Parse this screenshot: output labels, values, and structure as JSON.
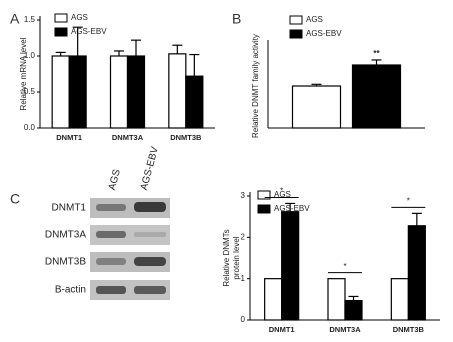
{
  "panel_labels": [
    "A",
    "B",
    "C"
  ],
  "blot": {
    "columns": [
      "AGS",
      "AGS-EBV"
    ],
    "rows": [
      "DNMT1",
      "DNMT3A",
      "DNMT3B",
      "B-actin"
    ]
  },
  "chart_data": [
    {
      "type": "bar",
      "ylabel": "Relative mRNA level",
      "categories": [
        "DNMT1",
        "DNMT3A",
        "DNMT3B"
      ],
      "series": [
        {
          "name": "AGS",
          "color": "#ffffff",
          "values": [
            1.0,
            1.0,
            1.03
          ],
          "errors": [
            0.05,
            0.07,
            0.12
          ]
        },
        {
          "name": "AGS-EBV",
          "color": "#000000",
          "values": [
            1.0,
            1.0,
            0.72
          ],
          "errors": [
            0.4,
            0.22,
            0.3
          ]
        }
      ],
      "ylim": [
        0,
        1.5
      ],
      "yticks": [
        {
          "value": 0,
          "label": "0.0"
        },
        {
          "value": 0.5,
          "label": "0.5"
        },
        {
          "value": 1,
          "label": "1.0"
        },
        {
          "value": 1.5,
          "label": "1.5"
        }
      ]
    },
    {
      "type": "bar",
      "ylabel": "Relative DNMT family activity",
      "series": [
        {
          "name": "AGS",
          "color": "#ffffff",
          "values": [
            1.0
          ],
          "errors": [
            0.04
          ]
        },
        {
          "name": "AGS-EBV",
          "color": "#000000",
          "values": [
            1.5
          ],
          "errors": [
            0.12
          ]
        }
      ],
      "ylim": [
        0,
        2
      ],
      "annotations": [
        "**"
      ]
    },
    {
      "type": "bar",
      "ylabel": [
        "Relative DNMTs",
        "protein level"
      ],
      "categories": [
        "DNMT1",
        "DNMT3A",
        "DNMT3B"
      ],
      "series": [
        {
          "name": "AGS",
          "color": "#ffffff",
          "values": [
            1,
            1,
            1
          ]
        },
        {
          "name": "AGS-EBV",
          "color": "#000000",
          "values": [
            2.62,
            0.47,
            2.28
          ],
          "errors": [
            0.2,
            0.1,
            0.3
          ]
        }
      ],
      "ylim": [
        0,
        3
      ],
      "yticks": [
        0,
        1,
        2,
        3
      ],
      "annotations": [
        "*",
        "*",
        "*"
      ]
    }
  ]
}
